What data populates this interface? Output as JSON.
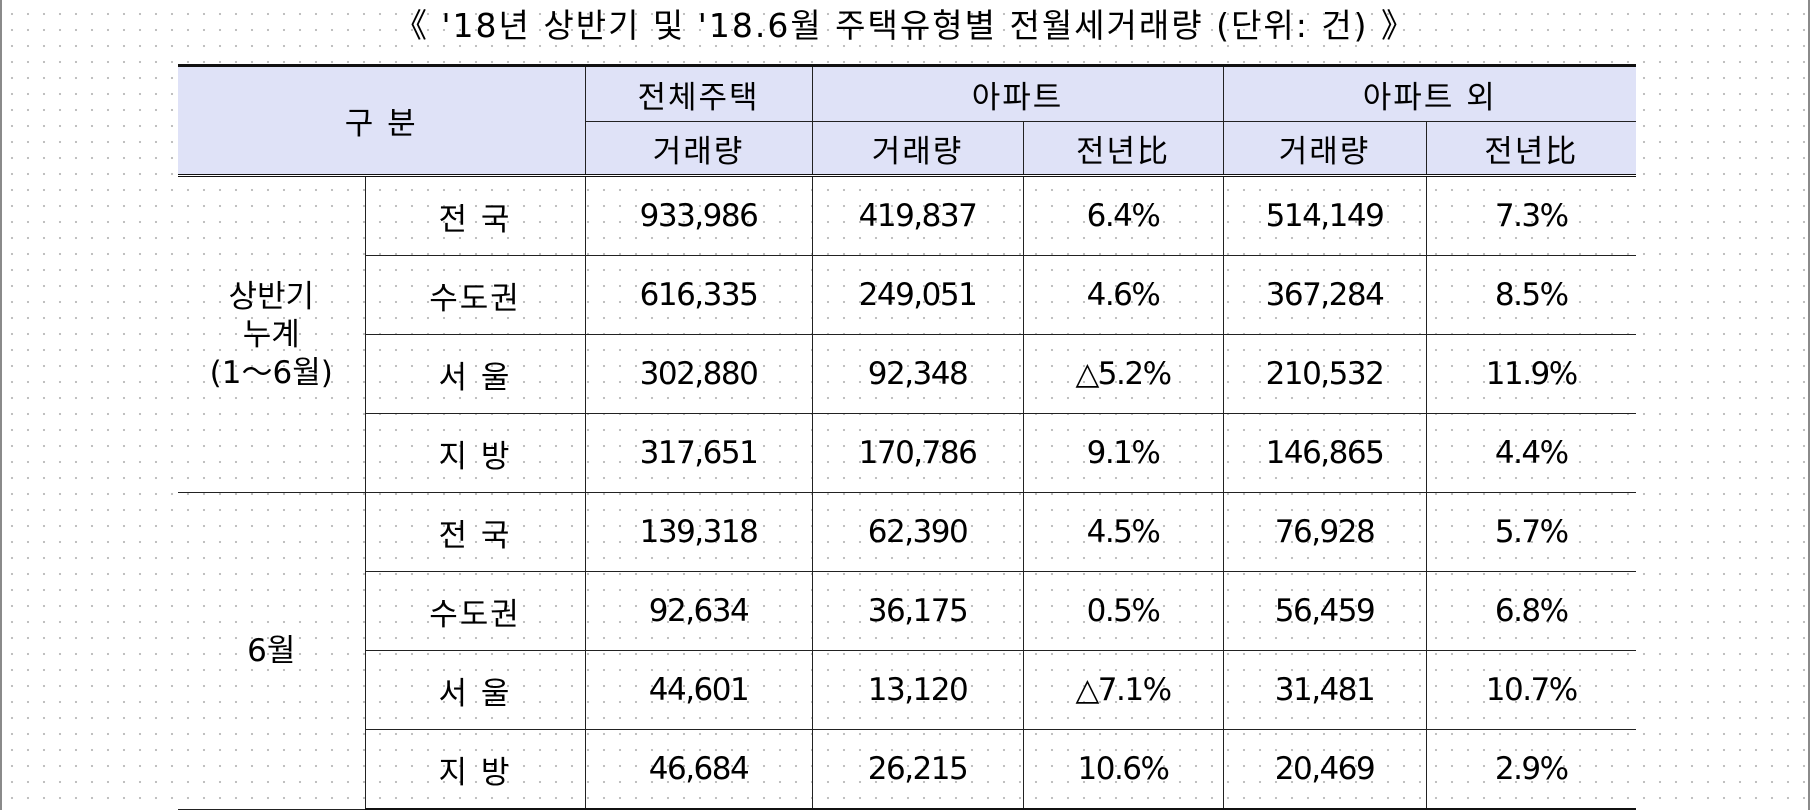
{
  "title": "《 '18년 상반기 및 '18.6월 주택유형별 전월세거래량 (단위: 건) 》",
  "header": {
    "gubun": "구 분",
    "total_house": "전체주택",
    "apartment": "아파트",
    "non_apartment": "아파트 외",
    "volume": "거래량",
    "yoy": "전년比"
  },
  "groups": [
    {
      "label": "상반기\n누계\n(1～6월)",
      "rows": [
        {
          "region": "전 국",
          "total": "933,986",
          "apt_volume": "419,837",
          "apt_yoy": "6.4%",
          "non_volume": "514,149",
          "non_yoy": "7.3%"
        },
        {
          "region": "수도권",
          "total": "616,335",
          "apt_volume": "249,051",
          "apt_yoy": "4.6%",
          "non_volume": "367,284",
          "non_yoy": "8.5%"
        },
        {
          "region": "서 울",
          "total": "302,880",
          "apt_volume": "92,348",
          "apt_yoy": "△5.2%",
          "non_volume": "210,532",
          "non_yoy": "11.9%"
        },
        {
          "region": "지 방",
          "total": "317,651",
          "apt_volume": "170,786",
          "apt_yoy": "9.1%",
          "non_volume": "146,865",
          "non_yoy": "4.4%"
        }
      ]
    },
    {
      "label": "6월",
      "rows": [
        {
          "region": "전 국",
          "total": "139,318",
          "apt_volume": "62,390",
          "apt_yoy": "4.5%",
          "non_volume": "76,928",
          "non_yoy": "5.7%"
        },
        {
          "region": "수도권",
          "total": "92,634",
          "apt_volume": "36,175",
          "apt_yoy": "0.5%",
          "non_volume": "56,459",
          "non_yoy": "6.8%"
        },
        {
          "region": "서 울",
          "total": "44,601",
          "apt_volume": "13,120",
          "apt_yoy": "△7.1%",
          "non_volume": "31,481",
          "non_yoy": "10.7%"
        },
        {
          "region": "지 방",
          "total": "46,684",
          "apt_volume": "26,215",
          "apt_yoy": "10.6%",
          "non_volume": "20,469",
          "non_yoy": "2.9%"
        }
      ]
    }
  ]
}
